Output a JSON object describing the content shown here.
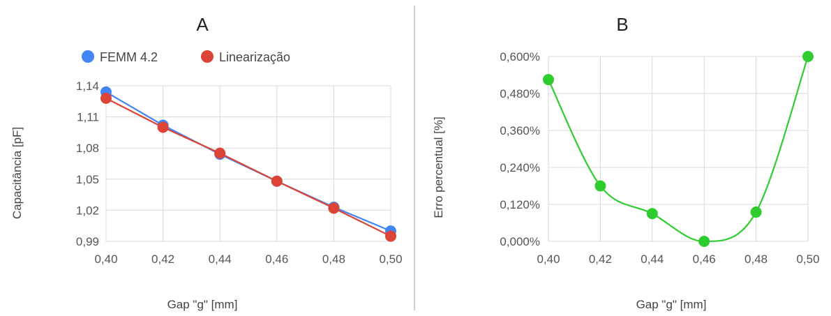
{
  "chart_data": [
    {
      "id": "A",
      "type": "line",
      "title": "A",
      "xlabel": "Gap \"g\" [mm]",
      "ylabel": "Capacitância [pF]",
      "x": [
        0.4,
        0.42,
        0.44,
        0.46,
        0.48,
        0.5
      ],
      "x_tick_labels": [
        "0,40",
        "0,42",
        "0,44",
        "0,46",
        "0,48",
        "0,50"
      ],
      "y_tick_labels": [
        "0,99",
        "1,02",
        "1,05",
        "1,08",
        "1,11",
        "1,14"
      ],
      "y_ticks": [
        0.99,
        1.02,
        1.05,
        1.08,
        1.11,
        1.14
      ],
      "xlim": [
        0.4,
        0.5
      ],
      "ylim": [
        0.99,
        1.14
      ],
      "grid": true,
      "legend_position": "top",
      "series": [
        {
          "name": "FEMM 4.2",
          "color": "#4285f4",
          "values": [
            1.134,
            1.102,
            1.074,
            1.048,
            1.023,
            1.0
          ]
        },
        {
          "name": "Linearização",
          "color": "#db4437",
          "values": [
            1.128,
            1.1,
            1.075,
            1.048,
            1.022,
            0.995
          ]
        }
      ]
    },
    {
      "id": "B",
      "type": "line",
      "title": "B",
      "xlabel": "Gap \"g\" [mm]",
      "ylabel": "Erro percentual [%]",
      "x": [
        0.4,
        0.42,
        0.44,
        0.46,
        0.48,
        0.5
      ],
      "x_tick_labels": [
        "0,40",
        "0,42",
        "0,44",
        "0,46",
        "0,48",
        "0,50"
      ],
      "y_tick_labels": [
        "0,000%",
        "0,120%",
        "0,240%",
        "0,360%",
        "0,480%",
        "0,600%"
      ],
      "y_ticks": [
        0.0,
        0.12,
        0.24,
        0.36,
        0.48,
        0.6
      ],
      "xlim": [
        0.4,
        0.5
      ],
      "ylim": [
        0.0,
        0.6
      ],
      "grid": true,
      "smooth": true,
      "series": [
        {
          "name": "",
          "color": "#2ecc2e",
          "values": [
            0.525,
            0.18,
            0.09,
            0.0,
            0.095,
            0.6
          ]
        }
      ]
    }
  ]
}
